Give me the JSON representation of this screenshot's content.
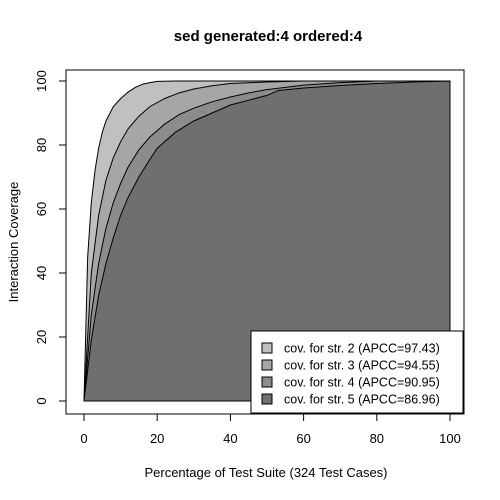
{
  "chart_data": {
    "type": "area",
    "title": "sed generated:4 ordered:4",
    "xlabel": "Percentage of Test Suite (324 Test Cases)",
    "ylabel": "Interaction Coverage",
    "xlim": [
      0,
      100
    ],
    "ylim": [
      0,
      100
    ],
    "x_ticks": [
      0,
      20,
      40,
      60,
      80,
      100
    ],
    "y_ticks": [
      0,
      20,
      40,
      60,
      80,
      100
    ],
    "legend_position": "bottom-right",
    "series": [
      {
        "name": "cov. for str. 2 (APCC=97.43)",
        "color": "#c0c0c0",
        "x": [
          0,
          1,
          2,
          3,
          4,
          5,
          6,
          8,
          10,
          12,
          14,
          16,
          18,
          20,
          25,
          30,
          40,
          50,
          60,
          80,
          100
        ],
        "y": [
          0,
          45,
          62,
          72,
          79,
          84,
          87.5,
          92,
          94.5,
          96.5,
          98,
          99,
          99.5,
          99.9,
          100,
          100,
          100,
          100,
          100,
          100,
          100
        ]
      },
      {
        "name": "cov. for str. 3 (APCC=94.55)",
        "color": "#a6a6a6",
        "x": [
          0,
          2,
          4,
          6,
          8,
          10,
          12,
          15,
          18,
          22,
          26,
          30,
          35,
          40,
          50,
          60,
          80,
          100
        ],
        "y": [
          0,
          40,
          58,
          69,
          76,
          81,
          85,
          89,
          92,
          94.5,
          96.3,
          97.5,
          98.5,
          99.2,
          99.7,
          100,
          100,
          100
        ]
      },
      {
        "name": "cov. for str. 4 (APCC=90.95)",
        "color": "#8c8c8c",
        "x": [
          0,
          2,
          4,
          6,
          8,
          10,
          12,
          15,
          18,
          22,
          26,
          30,
          35,
          40,
          45,
          50,
          55,
          60,
          70,
          80,
          100
        ],
        "y": [
          0,
          27,
          43,
          54,
          62,
          68,
          73,
          78.5,
          82.5,
          86.5,
          89.5,
          91.5,
          93.5,
          95,
          96.3,
          97.3,
          98,
          98.7,
          99.5,
          100,
          100
        ]
      },
      {
        "name": "cov. for str. 5 (APCC=86.96)",
        "color": "#6f6f6f",
        "x": [
          0,
          2,
          4,
          6,
          8,
          10,
          12,
          15,
          18,
          20,
          25,
          30,
          35,
          40,
          45,
          50,
          53,
          60,
          70,
          80,
          90,
          100
        ],
        "y": [
          0,
          19,
          33,
          43,
          51,
          58,
          63.5,
          70,
          75.5,
          79,
          84,
          87.5,
          90,
          92.5,
          94,
          95.5,
          97,
          97.8,
          98.6,
          99.2,
          99.7,
          100
        ]
      }
    ]
  }
}
